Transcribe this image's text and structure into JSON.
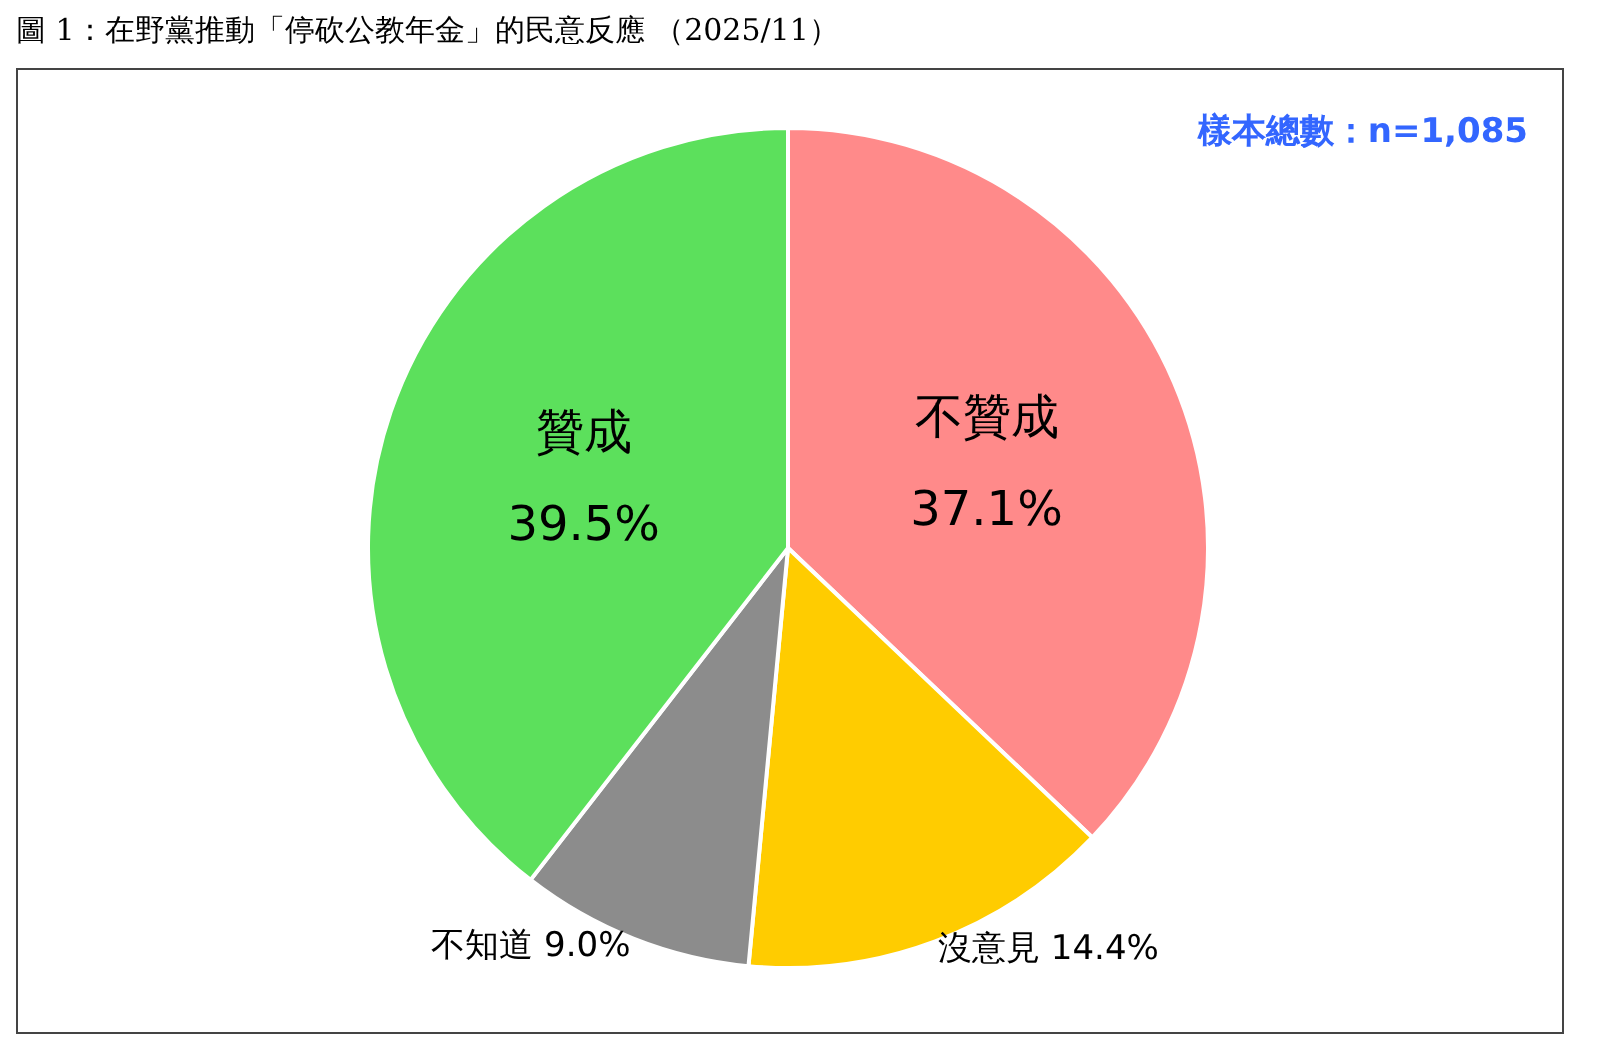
{
  "chart_data": {
    "type": "pie",
    "title": "圖 1：在野黨推動「停砍公教年金」的民意反應 （2025/11）",
    "annotations": [
      "樣本總數：n=1,085"
    ],
    "categories": [
      "不贊成",
      "沒意見",
      "不知道",
      "贊成"
    ],
    "values": [
      37.1,
      14.4,
      9.0,
      39.5
    ],
    "value_labels": [
      "37.1%",
      "14.4%",
      "9.0%",
      "39.5%"
    ],
    "colors": [
      "#ff8a8a",
      "#ffcc00",
      "#8c8c8c",
      "#5ce05c"
    ]
  }
}
